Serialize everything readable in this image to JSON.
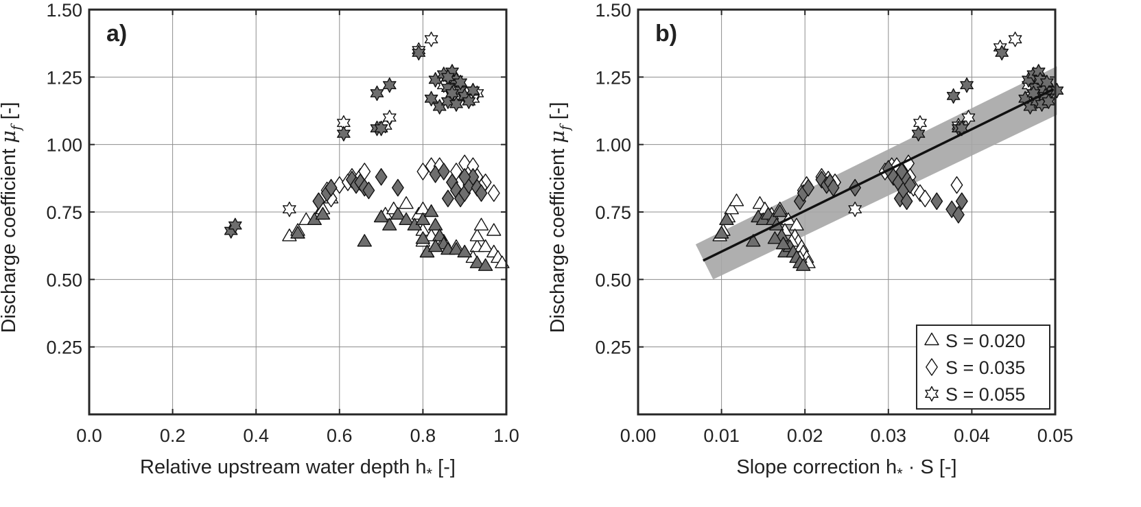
{
  "chart_data": [
    {
      "type": "scatter",
      "panel_label": "a)",
      "xlabel": "Relative upstream water depth h",
      "xlabel_sub": "*",
      "xlabel_unit": " [-]",
      "ylabel": "Discharge coefficient ",
      "ylabel_sym": "μ",
      "ylabel_sub": "f",
      "ylabel_unit": " [-]",
      "xlim": [
        0,
        1
      ],
      "ylim": [
        0,
        1.5
      ],
      "xticks": [
        0,
        0.2,
        0.4,
        0.6,
        0.8,
        1.0
      ],
      "xtick_labels": [
        "0.0",
        "0.2",
        "0.4",
        "0.6",
        "0.8",
        "1.0"
      ],
      "yticks": [
        0.25,
        0.5,
        0.75,
        1.0,
        1.25,
        1.5
      ],
      "ytick_labels": [
        "0.25",
        "0.50",
        "0.75",
        "1.00",
        "1.25",
        "1.50"
      ],
      "grid": true,
      "series": [
        {
          "marker": "triangle",
          "fill": "#ffffff",
          "points": [
            [
              0.48,
              0.66
            ],
            [
              0.5,
              0.68
            ],
            [
              0.52,
              0.72
            ],
            [
              0.55,
              0.74
            ],
            [
              0.56,
              0.76
            ],
            [
              0.58,
              0.8
            ],
            [
              0.71,
              0.74
            ],
            [
              0.73,
              0.76
            ],
            [
              0.76,
              0.78
            ],
            [
              0.79,
              0.74
            ],
            [
              0.8,
              0.76
            ],
            [
              0.8,
              0.68
            ],
            [
              0.82,
              0.66
            ],
            [
              0.85,
              0.64
            ],
            [
              0.88,
              0.62
            ],
            [
              0.93,
              0.62
            ],
            [
              0.93,
              0.66
            ],
            [
              0.94,
              0.7
            ],
            [
              0.95,
              0.62
            ],
            [
              0.97,
              0.68
            ],
            [
              0.97,
              0.6
            ],
            [
              0.98,
              0.58
            ],
            [
              0.99,
              0.56
            ],
            [
              0.8,
              0.64
            ],
            [
              0.81,
              0.6
            ],
            [
              0.92,
              0.58
            ]
          ]
        },
        {
          "marker": "triangle",
          "fill": "#6e6e6e",
          "points": [
            [
              0.5,
              0.67
            ],
            [
              0.54,
              0.72
            ],
            [
              0.56,
              0.74
            ],
            [
              0.66,
              0.64
            ],
            [
              0.7,
              0.73
            ],
            [
              0.72,
              0.7
            ],
            [
              0.74,
              0.74
            ],
            [
              0.76,
              0.72
            ],
            [
              0.78,
              0.7
            ],
            [
              0.8,
              0.72
            ],
            [
              0.81,
              0.6
            ],
            [
              0.82,
              0.75
            ],
            [
              0.83,
              0.7
            ],
            [
              0.84,
              0.66
            ],
            [
              0.85,
              0.63
            ],
            [
              0.86,
              0.61
            ],
            [
              0.88,
              0.61
            ],
            [
              0.9,
              0.6
            ],
            [
              0.93,
              0.56
            ],
            [
              0.95,
              0.55
            ],
            [
              0.8,
              0.65
            ],
            [
              0.83,
              0.62
            ]
          ]
        },
        {
          "marker": "diamond",
          "fill": "#ffffff",
          "points": [
            [
              0.57,
              0.83
            ],
            [
              0.58,
              0.8
            ],
            [
              0.6,
              0.85
            ],
            [
              0.63,
              0.88
            ],
            [
              0.65,
              0.88
            ],
            [
              0.66,
              0.9
            ],
            [
              0.8,
              0.9
            ],
            [
              0.82,
              0.92
            ],
            [
              0.84,
              0.92
            ],
            [
              0.88,
              0.9
            ],
            [
              0.9,
              0.93
            ],
            [
              0.92,
              0.92
            ],
            [
              0.93,
              0.88
            ],
            [
              0.95,
              0.86
            ],
            [
              0.97,
              0.82
            ],
            [
              0.94,
              0.84
            ],
            [
              0.62,
              0.86
            ]
          ]
        },
        {
          "marker": "diamond",
          "fill": "#6e6e6e",
          "points": [
            [
              0.55,
              0.79
            ],
            [
              0.57,
              0.82
            ],
            [
              0.58,
              0.84
            ],
            [
              0.63,
              0.87
            ],
            [
              0.64,
              0.85
            ],
            [
              0.65,
              0.86
            ],
            [
              0.66,
              0.84
            ],
            [
              0.67,
              0.83
            ],
            [
              0.7,
              0.88
            ],
            [
              0.74,
              0.84
            ],
            [
              0.83,
              0.89
            ],
            [
              0.85,
              0.9
            ],
            [
              0.86,
              0.8
            ],
            [
              0.87,
              0.86
            ],
            [
              0.88,
              0.83
            ],
            [
              0.89,
              0.8
            ],
            [
              0.9,
              0.82
            ],
            [
              0.91,
              0.85
            ],
            [
              0.92,
              0.88
            ],
            [
              0.93,
              0.84
            ],
            [
              0.94,
              0.82
            ],
            [
              0.9,
              0.88
            ]
          ]
        },
        {
          "marker": "star",
          "fill": "#ffffff",
          "points": [
            [
              0.48,
              0.76
            ],
            [
              0.61,
              1.08
            ],
            [
              0.71,
              1.07
            ],
            [
              0.72,
              1.1
            ],
            [
              0.79,
              1.35
            ],
            [
              0.82,
              1.39
            ],
            [
              0.85,
              1.22
            ],
            [
              0.9,
              1.2
            ],
            [
              0.93,
              1.19
            ],
            [
              0.88,
              1.18
            ],
            [
              0.92,
              1.17
            ]
          ]
        },
        {
          "marker": "star",
          "fill": "#6e6e6e",
          "points": [
            [
              0.34,
              0.68
            ],
            [
              0.35,
              0.7
            ],
            [
              0.61,
              1.04
            ],
            [
              0.69,
              1.06
            ],
            [
              0.7,
              1.06
            ],
            [
              0.69,
              1.19
            ],
            [
              0.72,
              1.22
            ],
            [
              0.79,
              1.34
            ],
            [
              0.82,
              1.17
            ],
            [
              0.83,
              1.24
            ],
            [
              0.84,
              1.14
            ],
            [
              0.85,
              1.26
            ],
            [
              0.86,
              1.21
            ],
            [
              0.86,
              1.16
            ],
            [
              0.87,
              1.27
            ],
            [
              0.88,
              1.24
            ],
            [
              0.88,
              1.15
            ],
            [
              0.89,
              1.2
            ],
            [
              0.9,
              1.18
            ],
            [
              0.91,
              1.16
            ],
            [
              0.92,
              1.2
            ],
            [
              0.86,
              1.25
            ],
            [
              0.87,
              1.19
            ],
            [
              0.89,
              1.23
            ]
          ]
        }
      ]
    },
    {
      "type": "scatter",
      "panel_label": "b)",
      "xlabel": "Slope correction h",
      "xlabel_sub": "*",
      "xlabel_unit": " · S [-]",
      "ylabel": "Discharge coefficient ",
      "ylabel_sym": "μ",
      "ylabel_sub": "f",
      "ylabel_unit": " [-]",
      "xlim": [
        0,
        0.05
      ],
      "ylim": [
        0,
        1.5
      ],
      "xticks": [
        0,
        0.01,
        0.02,
        0.03,
        0.04,
        0.05
      ],
      "xtick_labels": [
        "0.00",
        "0.01",
        "0.02",
        "0.03",
        "0.04",
        "0.05"
      ],
      "yticks": [
        0.25,
        0.5,
        0.75,
        1.0,
        1.25,
        1.5
      ],
      "ytick_labels": [
        "0.25",
        "0.50",
        "0.75",
        "1.00",
        "1.25",
        "1.50"
      ],
      "grid": true,
      "fit_line": [
        [
          0.0078,
          0.57
        ],
        [
          0.0498,
          1.205
        ]
      ],
      "band": [
        [
          0.0069,
          0.63
        ],
        [
          0.0502,
          1.29
        ],
        [
          0.0502,
          1.11
        ],
        [
          0.009,
          0.5
        ]
      ],
      "legend": {
        "placement": "bottom-right",
        "entries": [
          {
            "marker": "triangle",
            "label": "S = 0.020"
          },
          {
            "marker": "diamond",
            "label": "S = 0.035"
          },
          {
            "marker": "star",
            "label": "S = 0.055"
          }
        ]
      },
      "series": [
        {
          "marker": "triangle",
          "fill": "#ffffff",
          "points": [
            [
              0.0098,
              0.66
            ],
            [
              0.0102,
              0.68
            ],
            [
              0.0108,
              0.73
            ],
            [
              0.0112,
              0.76
            ],
            [
              0.0118,
              0.79
            ],
            [
              0.0146,
              0.78
            ],
            [
              0.0152,
              0.76
            ],
            [
              0.016,
              0.74
            ],
            [
              0.017,
              0.76
            ],
            [
              0.018,
              0.72
            ],
            [
              0.019,
              0.7
            ],
            [
              0.0188,
              0.66
            ],
            [
              0.0192,
              0.64
            ],
            [
              0.0196,
              0.62
            ],
            [
              0.0198,
              0.6
            ],
            [
              0.0202,
              0.58
            ],
            [
              0.0204,
              0.56
            ],
            [
              0.0176,
              0.68
            ],
            [
              0.0184,
              0.64
            ],
            [
              0.0194,
              0.58
            ]
          ]
        },
        {
          "marker": "triangle",
          "fill": "#6e6e6e",
          "points": [
            [
              0.01,
              0.67
            ],
            [
              0.0106,
              0.72
            ],
            [
              0.0138,
              0.64
            ],
            [
              0.0144,
              0.73
            ],
            [
              0.015,
              0.72
            ],
            [
              0.0156,
              0.74
            ],
            [
              0.0162,
              0.72
            ],
            [
              0.0166,
              0.7
            ],
            [
              0.017,
              0.75
            ],
            [
              0.0172,
              0.66
            ],
            [
              0.0176,
              0.6
            ],
            [
              0.0182,
              0.62
            ],
            [
              0.0186,
              0.6
            ],
            [
              0.019,
              0.58
            ],
            [
              0.0194,
              0.56
            ],
            [
              0.0198,
              0.55
            ],
            [
              0.0164,
              0.65
            ],
            [
              0.0174,
              0.63
            ]
          ]
        },
        {
          "marker": "diamond",
          "fill": "#ffffff",
          "points": [
            [
              0.0198,
              0.83
            ],
            [
              0.0202,
              0.85
            ],
            [
              0.022,
              0.88
            ],
            [
              0.0228,
              0.87
            ],
            [
              0.0296,
              0.9
            ],
            [
              0.0304,
              0.92
            ],
            [
              0.031,
              0.92
            ],
            [
              0.0318,
              0.9
            ],
            [
              0.0324,
              0.93
            ],
            [
              0.0326,
              0.88
            ],
            [
              0.033,
              0.84
            ],
            [
              0.0338,
              0.82
            ],
            [
              0.0344,
              0.8
            ],
            [
              0.0382,
              0.85
            ],
            [
              0.0236,
              0.86
            ]
          ]
        },
        {
          "marker": "diamond",
          "fill": "#6e6e6e",
          "points": [
            [
              0.0194,
              0.79
            ],
            [
              0.0198,
              0.82
            ],
            [
              0.0204,
              0.84
            ],
            [
              0.022,
              0.87
            ],
            [
              0.0226,
              0.85
            ],
            [
              0.023,
              0.86
            ],
            [
              0.0234,
              0.84
            ],
            [
              0.026,
              0.84
            ],
            [
              0.03,
              0.91
            ],
            [
              0.0306,
              0.88
            ],
            [
              0.0312,
              0.86
            ],
            [
              0.0314,
              0.8
            ],
            [
              0.0318,
              0.83
            ],
            [
              0.032,
              0.88
            ],
            [
              0.0322,
              0.79
            ],
            [
              0.0326,
              0.85
            ],
            [
              0.0358,
              0.79
            ],
            [
              0.0376,
              0.76
            ],
            [
              0.0384,
              0.74
            ],
            [
              0.0388,
              0.79
            ],
            [
              0.0316,
              0.9
            ]
          ]
        },
        {
          "marker": "star",
          "fill": "#ffffff",
          "points": [
            [
              0.026,
              0.76
            ],
            [
              0.0338,
              1.08
            ],
            [
              0.0384,
              1.07
            ],
            [
              0.0396,
              1.1
            ],
            [
              0.0434,
              1.36
            ],
            [
              0.0452,
              1.39
            ],
            [
              0.0468,
              1.22
            ],
            [
              0.0478,
              1.2
            ],
            [
              0.0486,
              1.19
            ],
            [
              0.0472,
              1.18
            ],
            [
              0.0482,
              1.17
            ]
          ]
        },
        {
          "marker": "star",
          "fill": "#6e6e6e",
          "points": [
            [
              0.0336,
              1.04
            ],
            [
              0.0378,
              1.18
            ],
            [
              0.0384,
              1.06
            ],
            [
              0.0388,
              1.06
            ],
            [
              0.0394,
              1.22
            ],
            [
              0.0436,
              1.34
            ],
            [
              0.0464,
              1.17
            ],
            [
              0.0468,
              1.24
            ],
            [
              0.047,
              1.14
            ],
            [
              0.0474,
              1.26
            ],
            [
              0.0476,
              1.21
            ],
            [
              0.0478,
              1.16
            ],
            [
              0.048,
              1.27
            ],
            [
              0.0482,
              1.24
            ],
            [
              0.0484,
              1.15
            ],
            [
              0.0486,
              1.2
            ],
            [
              0.0488,
              1.18
            ],
            [
              0.0492,
              1.16
            ],
            [
              0.0496,
              1.2
            ],
            [
              0.0502,
              1.2
            ],
            [
              0.0474,
              1.19
            ],
            [
              0.049,
              1.23
            ]
          ]
        }
      ]
    }
  ]
}
